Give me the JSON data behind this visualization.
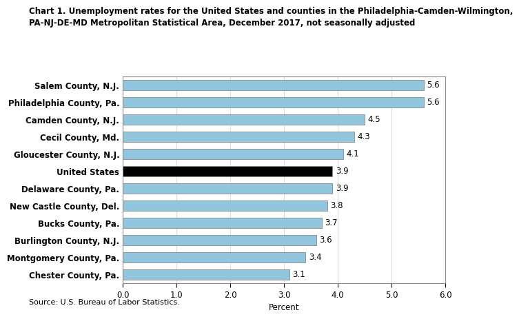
{
  "title_line1": "Chart 1. Unemployment rates for the United States and counties in the Philadelphia-Camden-Wilmington,",
  "title_line2": "PA-NJ-DE-MD Metropolitan Statistical Area, December 2017, not seasonally adjusted",
  "categories": [
    "Chester County, Pa.",
    "Montgomery County, Pa.",
    "Burlington County, N.J.",
    "Bucks County, Pa.",
    "New Castle County, Del.",
    "Delaware County, Pa.",
    "United States",
    "Gloucester County, N.J.",
    "Cecil County, Md.",
    "Camden County, N.J.",
    "Philadelphia County, Pa.",
    "Salem County, N.J."
  ],
  "values": [
    3.1,
    3.4,
    3.6,
    3.7,
    3.8,
    3.9,
    3.9,
    4.1,
    4.3,
    4.5,
    5.6,
    5.6
  ],
  "bar_colors": [
    "#92c5de",
    "#92c5de",
    "#92c5de",
    "#92c5de",
    "#92c5de",
    "#92c5de",
    "#000000",
    "#92c5de",
    "#92c5de",
    "#92c5de",
    "#92c5de",
    "#92c5de"
  ],
  "xlabel": "Percent",
  "xlim": [
    0,
    6.0
  ],
  "xticks": [
    0.0,
    1.0,
    2.0,
    3.0,
    4.0,
    5.0,
    6.0
  ],
  "xtick_labels": [
    "0.0",
    "1.0",
    "2.0",
    "3.0",
    "4.0",
    "5.0",
    "6.0"
  ],
  "source": "Source: U.S. Bureau of Labor Statistics.",
  "bar_edge_color": "#888888",
  "bar_edge_width": 0.6,
  "background_color": "#ffffff",
  "title_fontsize": 8.5,
  "label_fontsize": 8.5,
  "tick_fontsize": 8.5,
  "value_fontsize": 8.5,
  "source_fontsize": 8.0
}
